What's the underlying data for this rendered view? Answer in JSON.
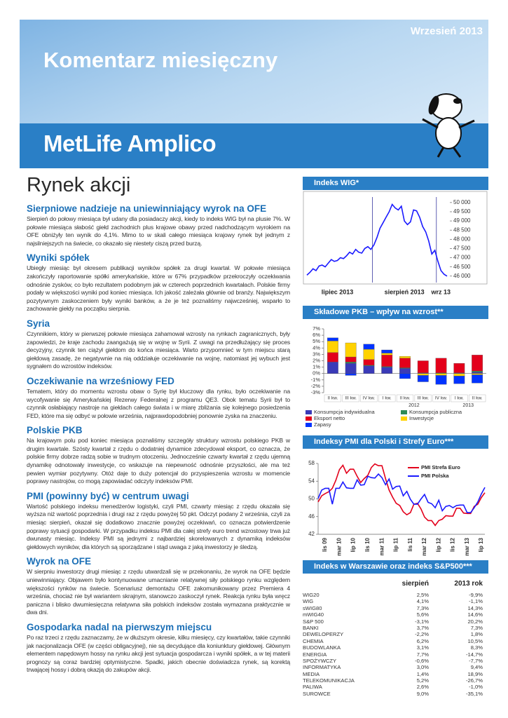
{
  "header": {
    "date": "Wrzesień 2013",
    "title": "Komentarz miesięczny",
    "brand": "MetLife Amplico"
  },
  "section_title": "Rynek akcji",
  "articles": [
    {
      "heading": "Sierpniowe nadzieje na uniewinniający wyrok na OFE",
      "body": "Sierpień do połowy miesiąca był udany dla posiadaczy akcji, kiedy to indeks WIG był na plusie 7%. W połowie miesiąca słabość giełd zachodnich plus krajowe obawy przed nadchodzącym wyrokiem na OFE obniżyły ten wynik do 4,1%. Mimo to w skali całego miesiąca krajowy rynek był jednym z najsilniejszych na świecie, co okazało się niestety ciszą przed burzą."
    },
    {
      "heading": "Wyniki spółek",
      "body": "Ubiegły miesiąc był okresem publikacji wyników spółek za drugi kwartał. W połowie miesiąca zakończyły raportowanie spółki amerykańskie, które w 67% przypadków przekroczyły oczekiwania odnośnie zysków, co było rezultatem podobnym jak w czterech poprzednich kwartałach. Polskie firmy podały w większości wyniki pod koniec miesiąca. Ich jakość zależała głównie od branży. Największym pozytywnym zaskoczeniem były wyniki banków, a że je też poznaliśmy najwcześniej, wsparło to zachowanie giełdy na początku sierpnia."
    },
    {
      "heading": "Syria",
      "body": "Czynnikiem, który w pierwszej połowie miesiąca zahamował wzrosty na rynkach zagranicznych, były zapowiedzi, że kraje zachodu zaangażują się w wojnę w Syrii. Z uwagi na przedłużający się proces decyzyjny, czynnik ten ciążył giełdom do końca miesiąca. Warto przypomnieć w tym miejscu starą giełdową zasadę, że negatywnie na nią oddziałuje oczekiwanie na wojnę, natomiast jej wybuch jest sygnałem do wzrostów indeksów."
    },
    {
      "heading": "Oczekiwanie na wrześniowy FED",
      "body": "Tematem, który do momentu wzrostu obaw o Syrię był kluczowy dla rynku, było oczekiwanie na wycofywanie się Amerykańskiej Rezerwy Federalnej z programu QE3. Obok tematu Syrii był to czynnik osłabiający nastroje na giełdach całego świata i w miarę zbliżania się kolejnego posiedzenia FED, które ma się odbyć w połowie września, najprawdopodobniej ponownie zyska na znaczeniu."
    },
    {
      "heading": "Polskie PKB",
      "body": "Na krajowym polu pod koniec miesiąca poznaliśmy szczegóły struktury wzrostu polskiego PKB w drugim kwartale. Szósty kwartał z rzędu o dodatniej dynamice zdecydował eksport, co oznacza, że polskie firmy dobrze radzą sobie w trudnym otoczeniu. Jednocześnie czwarty kwartał z rzędu ujemną dynamikę odnotowały inwestycje, co wskazuje na niepewność odnośnie przyszłości, ale ma też pewien wymiar pozytywny. Otóż daje to duży potencjał do przyspieszenia wzrostu w momencie poprawy nastrojów, co mogą zapowiadać odczyty indeksów PMI."
    },
    {
      "heading": "PMI (powinny być) w centrum uwagi",
      "body": "Wartość polskiego indeksu menedżerów logistyki, czyli PMI, czwarty miesiąc z rzędu okazała się wyższa niż wartość poprzednia i drugi raz z rzędu powyżej 50 pkt. Odczyt podany 2 września, czyli za miesiąc sierpień, okazał się dodatkowo znacznie powyżej oczekiwań, co oznacza potwierdzenie poprawy sytuacji gospodarki. W przypadku indeksu PMI dla całej strefy euro trend wzrostowy trwa już dwunasty miesiąc. Indeksy PMI są jednymi z najbardziej skorelowanych z dynamiką indeksów giełdowych wyników, dla których są sporządzane i stąd uwaga z jaką inwestorzy je śledzą."
    },
    {
      "heading": "Wyrok na OFE",
      "body": "W sierpniu inwestorzy drugi miesiąc z rzędu utwardzali się w przekonaniu, że wyrok na OFE będzie uniewinniający. Objawem było kontynuowane umacnianie relatywnej siły polskiego rynku względem większości rynków na świecie. Scenariusz demontażu OFE zakomunikowany przez Premiera 4 września, chociaż nie był wariantem skrajnym, stanowczo zaskoczył rynek. Reakcja rynku była wręcz paniczna i blisko dwumiesięczna relatywna siła polskich indeksów została wymazana praktycznie w dwa dni."
    },
    {
      "heading": "Gospodarka nadal na pierwszym miejscu",
      "body": "Po raz trzeci z rzędu zaznaczamy, że w dłuższym okresie, kilku miesięcy, czy kwartałów, takie czynniki jak nacjonalizacja OFE (w części obligacyjnej), nie są decydujące dla koniunktury giełdowej. Głównym elementem napędowym hossy na rynku akcji jest sytuacja gospodarcza i wyniki spółek, a w tej materii prognozy są coraz bardziej optymistyczne. Spadki, jakich obecnie doświadcza rynek, są korektą trwającej hossy i dobrą okazją do zakupów akcji."
    }
  ],
  "chart_data": [
    {
      "type": "line",
      "title": "Indeks WIG*",
      "color": "#1a1aff",
      "categories": [
        null,
        null,
        null,
        null,
        null,
        null,
        null,
        null,
        null,
        null,
        "lipiec 2013",
        null,
        null,
        null,
        null,
        null,
        null,
        null,
        null,
        null,
        null,
        null,
        null,
        null,
        null,
        null,
        null,
        null,
        null,
        null,
        null,
        null,
        "sierpień 2013",
        null,
        null,
        null,
        null,
        null,
        null,
        null,
        null,
        null,
        null,
        null,
        "wrz 13",
        null,
        null
      ],
      "values": [
        46050,
        46200,
        46400,
        46300,
        46550,
        46600,
        46500,
        46700,
        46900,
        46800,
        46850,
        47000,
        46950,
        47100,
        47300,
        47200,
        47450,
        47300,
        47250,
        47500,
        47600,
        47450,
        47700,
        48100,
        48600,
        48900,
        49200,
        49500,
        49900,
        49700,
        49600,
        49800,
        49000,
        48800,
        48950,
        49600,
        49550,
        49200,
        48700,
        48400,
        47900,
        47200,
        47400,
        46800,
        46300,
        46100,
        46000
      ],
      "ylim": [
        45800,
        50300
      ],
      "yticks": [
        {
          "value": 46000,
          "label": "46 000"
        },
        {
          "value": 46500,
          "label": "46 500"
        },
        {
          "value": 47000,
          "label": "47 000"
        },
        {
          "value": 47500,
          "label": "47 500"
        },
        {
          "value": 48000,
          "label": "48 000"
        },
        {
          "value": 48500,
          "label": "48 500"
        },
        {
          "value": 49000,
          "label": "49 000"
        },
        {
          "value": 49500,
          "label": "49 500"
        },
        {
          "value": 50000,
          "label": "50 000"
        }
      ]
    },
    {
      "type": "bar",
      "stacked": true,
      "title": "Składowe PKB – wpływ na wzrost**",
      "categories": [
        "II kw.",
        "III kw.",
        "IV kw.",
        "I kw.",
        "II kw.",
        "III kw.",
        "IV kw.",
        "I kw.",
        "II kw."
      ],
      "category_groups": [
        null,
        null,
        null,
        "2012",
        "2012",
        "2012",
        "2012",
        "2013",
        "2013"
      ],
      "series": [
        {
          "name": "Konsumpcja indywidualna",
          "color": "#3a3ab8",
          "values": [
            1.8,
            1.6,
            1.2,
            1.0,
            0.8,
            0.1,
            0.0,
            0.1,
            0.2
          ]
        },
        {
          "name": "Konsumpcja publiczna",
          "color": "#2e8b57",
          "values": [
            0.0,
            0.2,
            0.1,
            0.1,
            0.1,
            0.0,
            0.1,
            0.0,
            0.2
          ]
        },
        {
          "name": "Eksport netto",
          "color": "#e3001b",
          "values": [
            1.5,
            0.8,
            0.9,
            1.8,
            1.5,
            1.9,
            2.3,
            1.5,
            2.5
          ]
        },
        {
          "name": "Inwestycje",
          "color": "#ffd200",
          "values": [
            1.8,
            2.2,
            1.6,
            0.3,
            0.3,
            -0.3,
            -0.3,
            -0.4,
            -0.2
          ]
        },
        {
          "name": "Zapasy",
          "color": "#0033ff",
          "values": [
            0.5,
            -0.3,
            0.8,
            0.5,
            -0.8,
            -1.0,
            -1.4,
            -1.2,
            -1.3
          ]
        }
      ],
      "ylim": [
        -3,
        7
      ],
      "yticks": [
        {
          "value": -3,
          "label": "-3%"
        },
        {
          "value": -2,
          "label": "-2%"
        },
        {
          "value": -1,
          "label": "-1%"
        },
        {
          "value": 0,
          "label": "0%"
        },
        {
          "value": 1,
          "label": "1%"
        },
        {
          "value": 2,
          "label": "2%"
        },
        {
          "value": 3,
          "label": "3%"
        },
        {
          "value": 4,
          "label": "4%"
        },
        {
          "value": 5,
          "label": "5%"
        },
        {
          "value": 6,
          "label": "6%"
        },
        {
          "value": 7,
          "label": "7%"
        }
      ]
    },
    {
      "type": "line",
      "title": "Indeksy PMI dla Polski i Strefy Euro***",
      "categories": [
        null,
        null,
        "lis 09",
        null,
        null,
        null,
        "mar 10",
        null,
        null,
        null,
        "lip 10",
        null,
        null,
        null,
        "lis 10",
        null,
        null,
        null,
        "mar 11",
        null,
        null,
        null,
        "lip 11",
        null,
        null,
        null,
        "lis 11",
        null,
        null,
        null,
        "mar 12",
        null,
        null,
        null,
        "lip 12",
        null,
        null,
        null,
        "lis 12",
        null,
        null,
        null,
        "mar 13",
        null,
        null,
        null,
        "lip 13",
        null
      ],
      "series": [
        {
          "name": "PMI Strefa Euro",
          "color": "#e3001b",
          "values": [
            49.3,
            50.7,
            51.2,
            51.6,
            52.4,
            54.2,
            56.6,
            57.6,
            55.8,
            56.7,
            56.7,
            55.1,
            53.7,
            54.6,
            55.3,
            57.1,
            57.9,
            57.5,
            57.5,
            54.6,
            52.0,
            50.4,
            49.0,
            48.5,
            47.1,
            46.4,
            46.9,
            48.8,
            49.0,
            47.7,
            45.9,
            45.1,
            45.1,
            44.0,
            45.1,
            45.4,
            46.2,
            46.1,
            46.1,
            47.9,
            47.9,
            46.8,
            46.7,
            46.7,
            48.3,
            48.8,
            50.3,
            51.4
          ]
        },
        {
          "name": "PMI Polska",
          "color": "#1a1aff",
          "values": [
            50.1,
            52.0,
            52.4,
            52.4,
            48.8,
            52.4,
            52.4,
            53.8,
            52.5,
            52.4,
            52.4,
            54.3,
            53.1,
            53.2,
            55.1,
            54.8,
            54.7,
            55.6,
            54.8,
            53.2,
            54.5,
            52.2,
            52.8,
            52.9,
            50.7,
            51.7,
            49.9,
            48.8,
            48.8,
            50.0,
            51.0,
            49.2,
            48.9,
            48.0,
            49.7,
            47.3,
            48.3,
            48.5,
            48.0,
            48.5,
            48.6,
            48.6,
            46.9,
            46.9,
            48.0,
            49.3,
            51.1,
            52.6
          ]
        }
      ],
      "ylim": [
        42,
        58
      ],
      "yticks": [
        42,
        46,
        50,
        54,
        58
      ]
    }
  ],
  "table": {
    "title": "Indeks w Warszawie oraz indeks S&P500***",
    "columns": [
      "sierpień",
      "2013 rok"
    ],
    "rows": [
      [
        "WIG20",
        "2,5%",
        "-9,9%"
      ],
      [
        "WIG",
        "4,1%",
        "-1,1%"
      ],
      [
        "sWIG80",
        "7,3%",
        "14,3%"
      ],
      [
        "mWIG40",
        "5,6%",
        "14,6%"
      ],
      [
        "S&P 500",
        "-3,1%",
        "20,2%"
      ],
      [
        "BANKI",
        "3,7%",
        "7,3%"
      ],
      [
        "DEWELOPERZY",
        "-2,2%",
        "1,8%"
      ],
      [
        "CHEMIA",
        "6,2%",
        "10,5%"
      ],
      [
        "BUDOWLANKA",
        "3,1%",
        "8,3%"
      ],
      [
        "ENERGIA",
        "7,7%",
        "-14,7%"
      ],
      [
        "SPOŻYWCZY",
        "-0,6%",
        "-7,7%"
      ],
      [
        "INFORMATYKA",
        "3,0%",
        "9,4%"
      ],
      [
        "MEDIA",
        "1,4%",
        "18,9%"
      ],
      [
        "TELEKOMUNIKACJA",
        "5,2%",
        "-26,7%"
      ],
      [
        "PALIWA",
        "2,6%",
        "-1,0%"
      ],
      [
        "SUROWCE",
        "9,0%",
        "-35,1%"
      ]
    ]
  }
}
